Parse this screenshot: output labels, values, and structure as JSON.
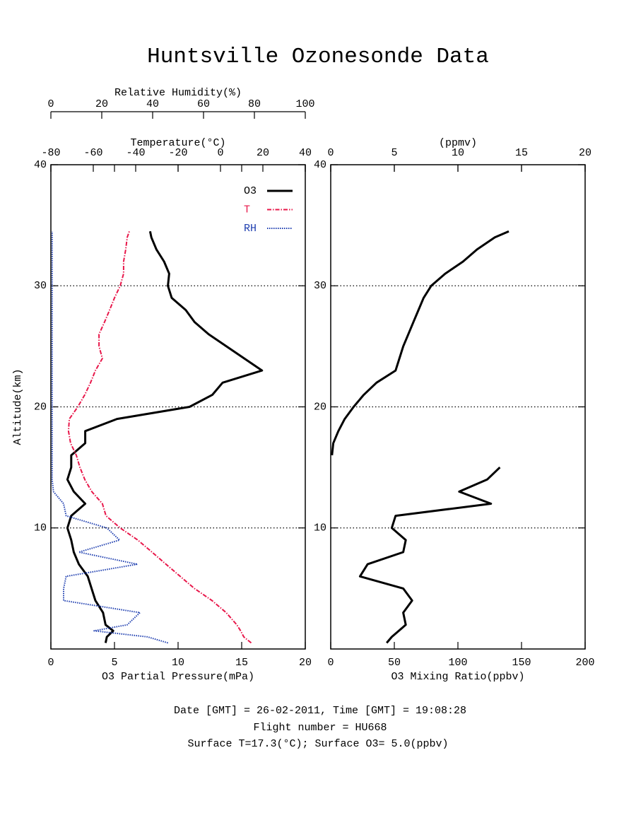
{
  "title": "Huntsville Ozonesonde Data",
  "footer": [
    "Date [GMT] = 26-02-2011,  Time [GMT] = 19:08:28",
    "Flight number = HU668",
    "Surface T=17.3(°C); Surface O3= 5.0(ppbv)"
  ],
  "chart_data": [
    {
      "type": "line",
      "ylabel": "Altitude(km)",
      "ylim": [
        0,
        40
      ],
      "yticks": [
        10,
        20,
        30,
        40
      ],
      "grid": true,
      "legend": "upper right",
      "xaxes": [
        {
          "position": "bottom",
          "label": "O3 Partial Pressure(mPa)",
          "lim": [
            0,
            20
          ],
          "ticks": [
            0,
            5,
            10,
            15,
            20
          ]
        },
        {
          "position": "top",
          "label": "Temperature(°C)",
          "lim": [
            -80,
            40
          ],
          "ticks": [
            -80,
            -60,
            -40,
            -20,
            0,
            20,
            40
          ]
        },
        {
          "position": "top-outer",
          "label": "Relative Humidity(%)",
          "lim": [
            0,
            100
          ],
          "ticks": [
            0,
            20,
            40,
            60,
            80,
            100
          ]
        }
      ],
      "y": [
        0.5,
        1,
        1.5,
        2,
        3,
        4,
        5,
        6,
        7,
        8,
        9,
        10,
        11,
        12,
        13,
        14,
        15,
        16,
        17,
        18,
        19,
        20,
        21,
        22,
        23,
        24,
        25,
        26,
        27,
        28,
        29,
        30,
        31,
        32,
        33,
        34,
        34.5
      ],
      "series": [
        {
          "name": "O3",
          "color": "#000000",
          "style": "solid",
          "axis": 0,
          "values": [
            4.3,
            4.4,
            4.9,
            4.3,
            4.1,
            3.5,
            3.2,
            2.9,
            2.2,
            1.8,
            1.6,
            1.3,
            1.6,
            2.7,
            1.8,
            1.3,
            1.6,
            1.6,
            2.7,
            2.7,
            5.2,
            10.9,
            12.7,
            13.5,
            16.6,
            15.2,
            13.8,
            12.4,
            11.3,
            10.6,
            9.5,
            9.2,
            9.3,
            8.9,
            8.3,
            7.9,
            7.8
          ]
        },
        {
          "name": "T",
          "color": "#e8174a",
          "style": "dashdot",
          "axis": 1,
          "values": [
            14.5,
            11,
            9.5,
            7.7,
            2.7,
            -4,
            -12.3,
            -19,
            -25.7,
            -32.3,
            -39,
            -47.3,
            -54,
            -55.7,
            -60.7,
            -64,
            -66.3,
            -68,
            -70.7,
            -71.7,
            -71.3,
            -67.3,
            -64,
            -61.3,
            -59,
            -55.7,
            -57.3,
            -57.3,
            -54.7,
            -52.3,
            -50,
            -47.3,
            -45.7,
            -45.7,
            -44.7,
            -44,
            -43
          ]
        },
        {
          "name": "RH",
          "color": "#1f3fb0",
          "style": "dotted",
          "axis": 2,
          "values": [
            46,
            38,
            17,
            30,
            35,
            5,
            5,
            6,
            34,
            11,
            27,
            22,
            6,
            5,
            1,
            0.5,
            0.5,
            0.5,
            0.5,
            0.5,
            0.5,
            0.5,
            0.5,
            0.5,
            0.5,
            0.5,
            0.5,
            0.5,
            0.5,
            0.5,
            0.5,
            0.5,
            0.5,
            0.5,
            0.5,
            0.5,
            0.5
          ]
        }
      ]
    },
    {
      "type": "line",
      "ylim": [
        0,
        40
      ],
      "yticks": [
        10,
        20,
        30,
        40
      ],
      "grid": true,
      "xaxes": [
        {
          "position": "bottom",
          "label": "O3 Mixing Ratio(ppbv)",
          "lim": [
            0,
            200
          ],
          "ticks": [
            0,
            50,
            100,
            150,
            200
          ]
        },
        {
          "position": "top",
          "label": "(ppmv)",
          "lim": [
            0,
            20
          ],
          "ticks": [
            0,
            5,
            10,
            15,
            20
          ]
        }
      ],
      "y": [
        0.5,
        1,
        2,
        3,
        4,
        5,
        6,
        7,
        8,
        9,
        10,
        11,
        12,
        13,
        14,
        15,
        15.5,
        16,
        17,
        18,
        19,
        20,
        21,
        22,
        23,
        24,
        25,
        26,
        27,
        28,
        29,
        30,
        31,
        32,
        33,
        34,
        34.5
      ],
      "series": [
        {
          "color": "#000000",
          "style": "solid",
          "axis": 0,
          "values": [
            44,
            48,
            59,
            57,
            64,
            57,
            23,
            29,
            57,
            59,
            48,
            51,
            126,
            101,
            123,
            133,
            null,
            1,
            2,
            6,
            11,
            18,
            26,
            36,
            51,
            54,
            57,
            61,
            65,
            69,
            73,
            79,
            90,
            104,
            115,
            129,
            140
          ]
        }
      ]
    }
  ]
}
